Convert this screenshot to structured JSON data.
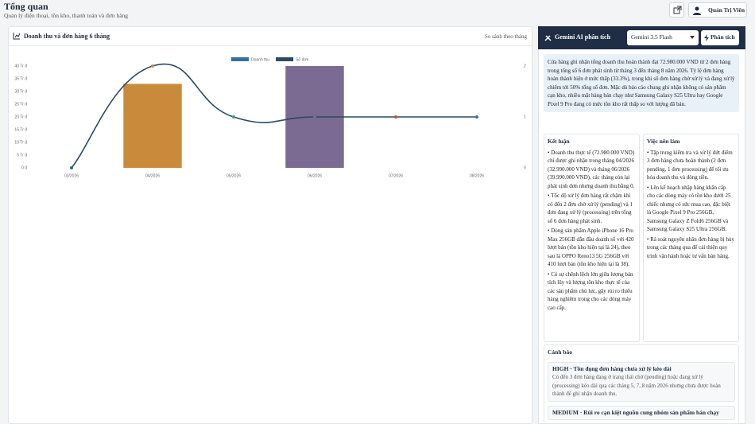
{
  "header": {
    "title": "Tổng quan",
    "subtitle": "Quản lý điện thoại, tồn kho, thanh toán và đơn hàng",
    "user": "Quản Trị Viên"
  },
  "chart_card": {
    "title": "Doanh thu và đơn hàng 6 tháng",
    "subtitle": "So sánh theo tháng"
  },
  "chart_data": {
    "type": "bar",
    "categories": [
      "03/2026",
      "04/2026",
      "05/2026",
      "06/2026",
      "07/2026",
      "08/2026"
    ],
    "series": [
      {
        "name": "Doanh thu",
        "type": "bar",
        "color": "#36709a",
        "point_colors": [
          "#2f6f73",
          "#c98a3b",
          "#4f9a6a",
          "#7b6a92",
          "#c0504d",
          "#3d6fa5"
        ],
        "values": [
          0,
          32990000,
          0,
          39990000,
          0,
          0
        ]
      },
      {
        "name": "Số đơn",
        "type": "line",
        "axis": "y2",
        "color": "#2b4a63",
        "point_colors": [
          "#2f6f73",
          "#c98a3b",
          "#4f9a6a",
          "#7b6a92",
          "#c0504d",
          "#3d6fa5"
        ],
        "values": [
          0,
          2,
          1,
          1,
          1,
          1
        ]
      }
    ],
    "ylim": [
      0,
      40000000
    ],
    "yticks": [
      {
        "value": 0,
        "label": "0 đ"
      },
      {
        "value": 5000000,
        "label": "5 Tr đ"
      },
      {
        "value": 10000000,
        "label": "10 Tr đ"
      },
      {
        "value": 15000000,
        "label": "15 Tr đ"
      },
      {
        "value": 20000000,
        "label": "20 Tr đ"
      },
      {
        "value": 25000000,
        "label": "25 Tr đ"
      },
      {
        "value": 30000000,
        "label": "30 Tr đ"
      },
      {
        "value": 35000000,
        "label": "35 Tr đ"
      },
      {
        "value": 40000000,
        "label": "40 Tr đ"
      }
    ],
    "y2lim": [
      0,
      2
    ],
    "y2ticks": [
      0,
      1,
      2
    ],
    "grid": false,
    "legend": "top"
  },
  "ai_panel": {
    "title": "Gemini AI phân tích",
    "model": "Gemini 3.5 Flash",
    "button": "Phân tích",
    "summary": "Cửa hàng ghi nhận tổng doanh thu hoàn thành đạt 72.980.000 VND từ 2 đơn hàng trong tổng số 6 đơn phát sinh từ tháng 3 đến tháng 8 năm 2026. Tỷ lệ đơn hàng hoàn thành hiện ở mức thấp (33.3%), trong khi số đơn hàng chờ xử lý và đang xử lý chiếm tới 50% tổng số đơn. Mặc dù báo cáo chung ghi nhận không có sản phẩm cạn kho, nhiều mặt hàng bán chạy như Samsung Galaxy S25 Ultra hay Google Pixel 9 Pro đang có mức tồn kho rất thấp so với lượng đã bán.",
    "conclusion": {
      "title": "Kết luận",
      "items": [
        "Doanh thu thực tế (72.980.000 VND) chỉ được ghi nhận trong tháng 04/2026 (32.990.000 VND) và tháng 06/2026 (39.990.000 VND), các tháng còn lại phát sinh đơn nhưng doanh thu bằng 0.",
        "Tốc độ xử lý đơn hàng rất chậm khi có đến 2 đơn chờ xử lý (pending) và 1 đơn đang xử lý (processing) trên tổng số 6 đơn hàng phát sinh.",
        "Dòng sản phẩm Apple iPhone 16 Pro Max 256GB dẫn đầu doanh số với 420 lượt bán (tồn kho hiện tại là 24), theo sau là OPPO Reno13 5G 256GB với 410 lượt bán (tồn kho hiện tại là 38).",
        "Có sự chênh lệch lớn giữa lượng bán tích lũy và lượng tồn kho thực tế của các sản phẩm chủ lực, gây rủi ro thiếu hàng nghiêm trọng cho các dòng máy cao cấp."
      ]
    },
    "actions": {
      "title": "Việc nên làm",
      "items": [
        "Tập trung kiểm tra và xử lý dứt điểm 3 đơn hàng chưa hoàn thành (2 đơn pending, 1 đơn processing) để tối ưu hóa doanh thu và dòng tiền.",
        "Lên kế hoạch nhập hàng khẩn cấp cho các dòng máy có tồn kho dưới 25 chiếc nhưng có sức mua cao, đặc biệt là Google Pixel 9 Pro 256GB, Samsung Galaxy Z Fold6 256GB và Samsung Galaxy S25 Ultra 256GB.",
        "Rà soát nguyên nhân đơn hàng bị hủy trong các tháng qua để cải thiện quy trình vận hành hoặc tư vấn bán hàng."
      ]
    },
    "warnings": {
      "title": "Cảnh báo",
      "items": [
        {
          "title": "HIGH · Tồn đọng đơn hàng chưa xử lý kéo dài",
          "description": "Có đến 3 đơn hàng đang ở trạng thái chờ (pending) hoặc đang xử lý (processing) kéo dài qua các tháng 5, 7, 8 năm 2026 nhưng chưa được hoàn thành để ghi nhận doanh thu."
        },
        {
          "title": "MEDIUM · Rủi ro cạn kiệt nguồn cung nhóm sản phẩm bán chạy"
        }
      ]
    }
  }
}
